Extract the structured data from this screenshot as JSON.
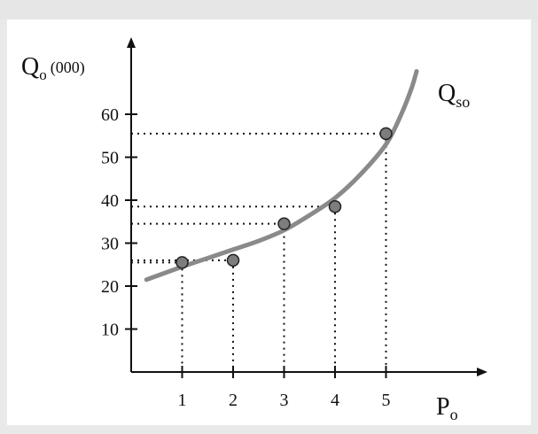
{
  "chart_data": {
    "type": "scatter",
    "ylabel_main": "Q",
    "ylabel_sub": "o",
    "ylabel_unit": "(000)",
    "xlabel_main": "P",
    "xlabel_sub": "o",
    "curve_label_main": "Q",
    "curve_label_sub": "so",
    "x_ticks": [
      "1",
      "2",
      "3",
      "4",
      "5"
    ],
    "y_ticks": [
      "10",
      "20",
      "30",
      "40",
      "50",
      "60"
    ],
    "xlim": [
      0,
      6
    ],
    "ylim": [
      0,
      70
    ],
    "points": [
      {
        "x": 1,
        "y": 25.5
      },
      {
        "x": 2,
        "y": 26
      },
      {
        "x": 3,
        "y": 34.5
      },
      {
        "x": 4,
        "y": 38.5
      },
      {
        "x": 5,
        "y": 55.5
      }
    ],
    "curve": [
      {
        "x": 0.3,
        "y": 21.5
      },
      {
        "x": 1,
        "y": 24.5
      },
      {
        "x": 1.5,
        "y": 26.5
      },
      {
        "x": 2,
        "y": 28.5
      },
      {
        "x": 2.5,
        "y": 30.5
      },
      {
        "x": 3,
        "y": 33
      },
      {
        "x": 3.5,
        "y": 36.5
      },
      {
        "x": 4,
        "y": 40.5
      },
      {
        "x": 4.5,
        "y": 46
      },
      {
        "x": 5,
        "y": 53
      },
      {
        "x": 5.3,
        "y": 60
      },
      {
        "x": 5.5,
        "y": 66
      },
      {
        "x": 5.6,
        "y": 70
      }
    ],
    "colors": {
      "axis": "#111111",
      "curve": "#8a8a8a",
      "point": "#7d7d7d",
      "guide": "#111111"
    }
  }
}
